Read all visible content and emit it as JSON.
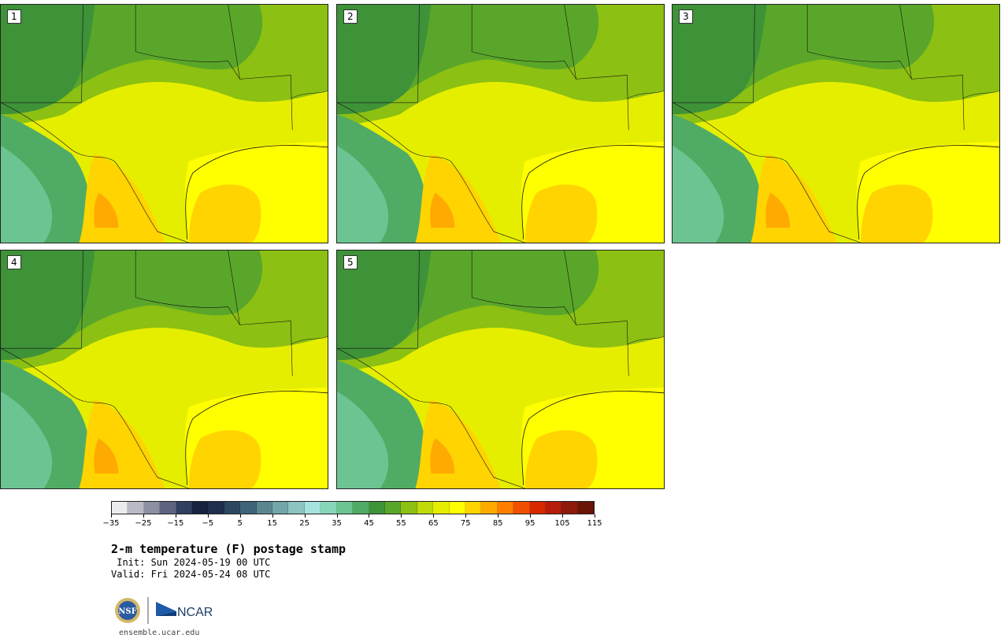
{
  "panels": [
    {
      "label": "1"
    },
    {
      "label": "2"
    },
    {
      "label": "3"
    },
    {
      "label": "4"
    },
    {
      "label": "5"
    }
  ],
  "colorbar": {
    "colors": [
      "#eaecee",
      "#b8bac6",
      "#8c90a2",
      "#5c6480",
      "#303e60",
      "#15233e",
      "#1e2e4c",
      "#2c4860",
      "#3f6478",
      "#5a8692",
      "#72a6aa",
      "#8cc4c2",
      "#a5e4de",
      "#88d6b8",
      "#6cc492",
      "#50ac64",
      "#3e9238",
      "#5aa62a",
      "#8cc012",
      "#c0da0a",
      "#e6ee00",
      "#ffff00",
      "#ffd400",
      "#ffaa00",
      "#ff7e00",
      "#f05000",
      "#d82800",
      "#b41e0a",
      "#8e1a0c",
      "#6a1408"
    ],
    "tick_labels": [
      "−35",
      "−25",
      "−15",
      "−5",
      "5",
      "15",
      "25",
      "35",
      "45",
      "55",
      "65",
      "75",
      "85",
      "95",
      "105",
      "115"
    ]
  },
  "title": "2-m temperature (F) postage stamp",
  "init": " Init: Sun 2024-05-19 00 UTC",
  "valid": "Valid: Fri 2024-05-24 08 UTC",
  "logos": {
    "nsf": "NSF",
    "ncar": "NCAR"
  },
  "url": "ensemble.ucar.edu"
}
